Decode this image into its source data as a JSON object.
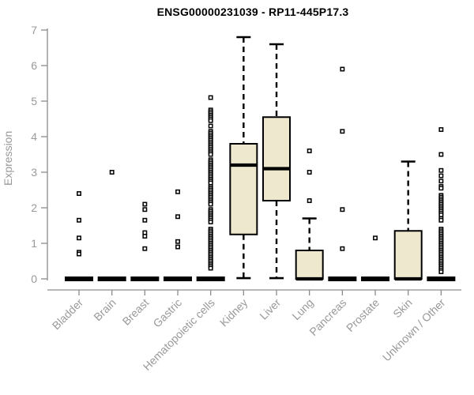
{
  "chart_data": {
    "type": "boxplot",
    "title": "ENSG00000231039 - RP11-445P17.3",
    "ylabel": "Expression",
    "xlabel": "",
    "ylim": [
      0,
      7
    ],
    "yticks": [
      0,
      1,
      2,
      3,
      4,
      5,
      6,
      7
    ],
    "grid": false,
    "legend": "none",
    "colors": {
      "box_fill": "#EDE8CE",
      "box_stroke": "#000000",
      "median": "#000000",
      "outlier_stroke": "#000000",
      "axis": "#8C8C8C",
      "tick_label": "#999999",
      "title": "#000000",
      "background": "#FFFFFF"
    },
    "categories": [
      "Bladder",
      "Brain",
      "Breast",
      "Gastric",
      "Hematopoietic cells",
      "Kidney",
      "Liver",
      "Lung",
      "Pancreas",
      "Prostate",
      "Skin",
      "Unknown / Other"
    ],
    "series": [
      {
        "category": "Bladder",
        "q1": 0,
        "median": 0,
        "q3": 0,
        "whisker_low": 0,
        "whisker_high": 0,
        "outliers": [
          2.4,
          1.65,
          1.15,
          0.75,
          0.7
        ]
      },
      {
        "category": "Brain",
        "q1": 0,
        "median": 0,
        "q3": 0,
        "whisker_low": 0,
        "whisker_high": 0,
        "outliers": [
          3.0
        ]
      },
      {
        "category": "Breast",
        "q1": 0,
        "median": 0,
        "q3": 0,
        "whisker_low": 0,
        "whisker_high": 0,
        "outliers": [
          2.1,
          1.95,
          1.65,
          1.3,
          1.2,
          0.85
        ]
      },
      {
        "category": "Gastric",
        "q1": 0,
        "median": 0,
        "q3": 0,
        "whisker_low": 0,
        "whisker_high": 0,
        "outliers": [
          2.45,
          1.75,
          1.05,
          0.9
        ]
      },
      {
        "category": "Hematopoietic cells",
        "q1": 0,
        "median": 0,
        "q3": 0,
        "whisker_low": 0,
        "whisker_high": 0,
        "outliers": [
          5.1,
          4.75,
          4.7,
          4.65,
          4.6,
          4.55,
          4.5,
          4.45,
          4.3,
          4.15,
          4.1,
          4.05,
          4.0,
          3.95,
          3.9,
          3.85,
          3.8,
          3.75,
          3.7,
          3.65,
          3.6,
          3.55,
          3.5,
          3.35,
          3.3,
          3.25,
          3.2,
          3.15,
          3.1,
          3.05,
          3.0,
          2.95,
          2.9,
          2.85,
          2.8,
          2.75,
          2.7,
          2.6,
          2.55,
          2.5,
          2.45,
          2.4,
          2.35,
          2.3,
          2.25,
          2.2,
          2.15,
          2.1,
          1.95,
          1.9,
          1.85,
          1.8,
          1.75,
          1.7,
          1.65,
          1.6,
          1.4,
          1.35,
          1.3,
          1.25,
          1.2,
          1.15,
          1.1,
          1.05,
          1.0,
          0.95,
          0.9,
          0.85,
          0.8,
          0.75,
          0.7,
          0.65,
          0.6,
          0.55,
          0.5,
          0.45,
          0.4,
          0.35,
          0.3
        ]
      },
      {
        "category": "Kidney",
        "q1": 1.25,
        "median": 3.2,
        "q3": 3.8,
        "whisker_low": 0.02,
        "whisker_high": 6.8,
        "outliers": []
      },
      {
        "category": "Liver",
        "q1": 2.2,
        "median": 3.1,
        "q3": 4.55,
        "whisker_low": 0.02,
        "whisker_high": 6.6,
        "outliers": []
      },
      {
        "category": "Lung",
        "q1": 0,
        "median": 0,
        "q3": 0.8,
        "whisker_low": 0,
        "whisker_high": 1.7,
        "outliers": [
          3.6,
          3.0,
          2.2
        ]
      },
      {
        "category": "Pancreas",
        "q1": 0,
        "median": 0,
        "q3": 0,
        "whisker_low": 0,
        "whisker_high": 0,
        "outliers": [
          5.9,
          4.15,
          1.95,
          0.85
        ]
      },
      {
        "category": "Prostate",
        "q1": 0,
        "median": 0,
        "q3": 0,
        "whisker_low": 0,
        "whisker_high": 0,
        "outliers": [
          1.15
        ]
      },
      {
        "category": "Skin",
        "q1": 0,
        "median": 0,
        "q3": 1.35,
        "whisker_low": 0,
        "whisker_high": 3.3,
        "outliers": []
      },
      {
        "category": "Unknown / Other",
        "q1": 0,
        "median": 0,
        "q3": 0,
        "whisker_low": 0,
        "whisker_high": 0,
        "outliers": [
          4.2,
          3.5,
          3.05,
          2.9,
          2.75,
          2.6,
          2.55,
          2.35,
          2.3,
          2.25,
          2.2,
          2.15,
          2.1,
          2.05,
          2.0,
          1.95,
          1.9,
          1.85,
          1.8,
          1.7,
          1.65,
          1.4,
          1.35,
          1.3,
          1.25,
          1.2,
          1.15,
          1.1,
          1.05,
          1.0,
          0.95,
          0.9,
          0.85,
          0.8,
          0.75,
          0.7,
          0.65,
          0.6,
          0.55,
          0.5,
          0.45,
          0.4,
          0.35,
          0.3,
          0.25,
          0.2
        ]
      }
    ]
  }
}
